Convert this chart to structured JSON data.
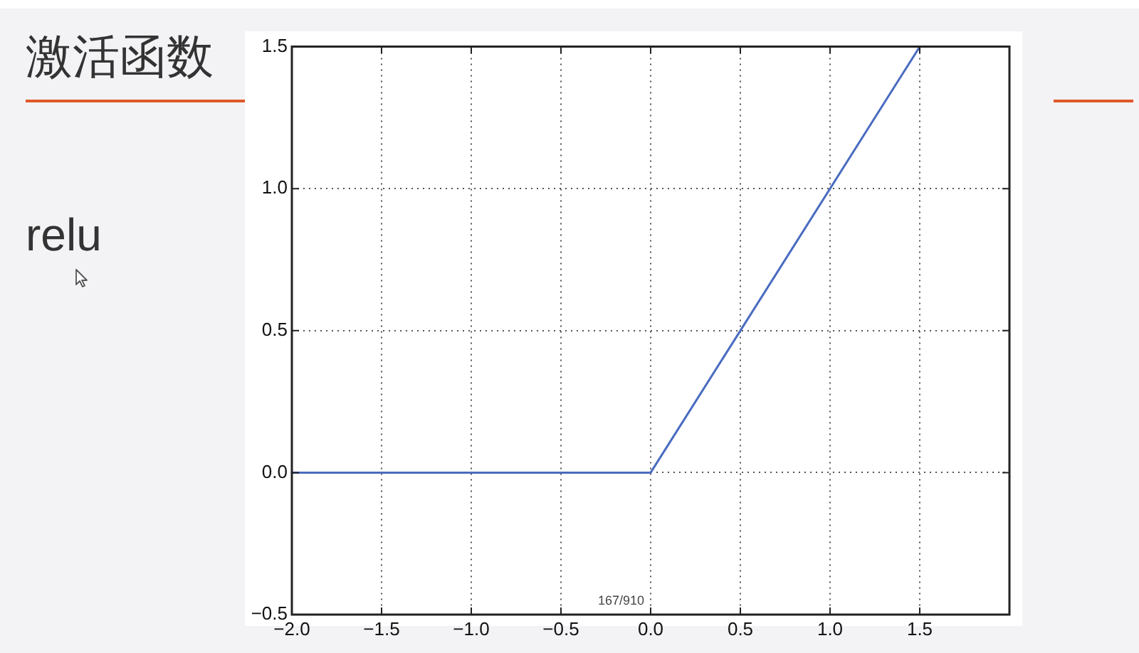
{
  "chart_data": {
    "type": "line",
    "title": "激活函数",
    "subtitle": "relu",
    "x": [
      -2,
      0,
      1.5
    ],
    "series": [
      {
        "color": "#4a6cc0",
        "values": [
          0,
          0,
          1.5
        ]
      }
    ],
    "xlim": [
      -2,
      2
    ],
    "ylim": [
      -0.5,
      1.5
    ],
    "xticks": [
      {
        "value": -2,
        "label": "−2.0"
      },
      {
        "value": -1.5,
        "label": "−1.5"
      },
      {
        "value": -1,
        "label": "−1.0"
      },
      {
        "value": -0.5,
        "label": "−0.5"
      },
      {
        "value": 0,
        "label": "0.0"
      },
      {
        "value": 0.5,
        "label": "0.5"
      },
      {
        "value": 1,
        "label": "1.0"
      },
      {
        "value": 1.5,
        "label": "1.5"
      }
    ],
    "yticks": [
      {
        "value": -0.5,
        "label": "−0.5"
      },
      {
        "value": 0,
        "label": "0.0"
      },
      {
        "value": 0.5,
        "label": "0.5"
      },
      {
        "value": 1,
        "label": "1.0"
      },
      {
        "value": 1.5,
        "label": "1.5"
      }
    ],
    "grid": true,
    "legend": false,
    "marker": "none",
    "line_style": "solid",
    "annotations": [
      "167/910"
    ]
  }
}
